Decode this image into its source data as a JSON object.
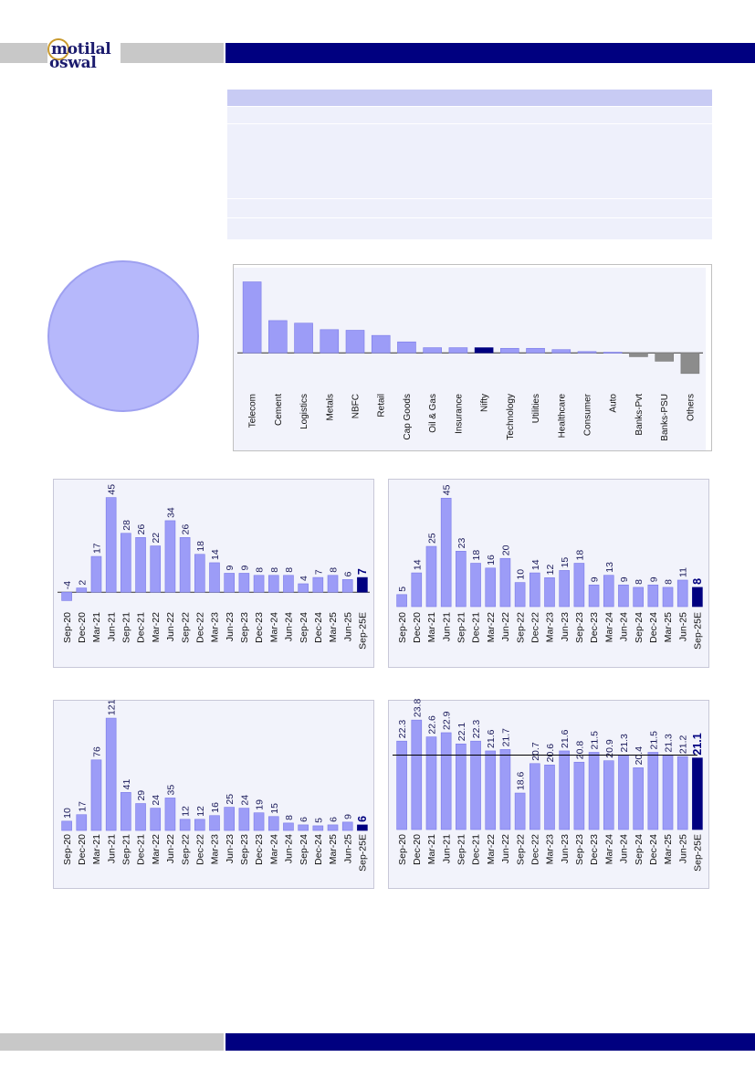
{
  "header": {
    "logo_line1": "motilal",
    "logo_line2": "oswal"
  },
  "chart_data": [
    {
      "id": "sector_growth",
      "type": "bar",
      "categories": [
        "Telecom",
        "Cement",
        "Logistics",
        "Metals",
        "NBFC",
        "Retail",
        "Cap Goods",
        "Oil & Gas",
        "Insurance",
        "Nifty",
        "Technology",
        "Utilities",
        "Healthcare",
        "Consumer",
        "Auto",
        "Banks-Pvt",
        "Banks-PSU",
        "Others"
      ],
      "values": [
        110,
        50,
        46,
        36,
        35,
        27,
        17,
        8,
        8,
        8,
        7,
        7,
        5,
        2,
        1,
        -6,
        -13,
        -32
      ],
      "highlight": [
        "Nifty"
      ],
      "negative_color": "#8c8c8c",
      "ylim": [
        -45,
        115
      ]
    },
    {
      "id": "chart_a",
      "type": "bar",
      "categories": [
        "Sep-20",
        "Dec-20",
        "Mar-21",
        "Jun-21",
        "Sep-21",
        "Dec-21",
        "Mar-22",
        "Jun-22",
        "Sep-22",
        "Dec-22",
        "Mar-23",
        "Jun-23",
        "Sep-23",
        "Dec-23",
        "Mar-24",
        "Jun-24",
        "Sep-24",
        "Dec-24",
        "Mar-25",
        "Jun-25",
        "Sep-25E"
      ],
      "values": [
        -4,
        2,
        17,
        45,
        28,
        26,
        22,
        34,
        26,
        18,
        14,
        9,
        9,
        8,
        8,
        8,
        4,
        7,
        8,
        6,
        7
      ],
      "highlight": [
        "Sep-25E"
      ],
      "ylim": [
        -6,
        47
      ]
    },
    {
      "id": "chart_b",
      "type": "bar",
      "categories": [
        "Sep-20",
        "Dec-20",
        "Mar-21",
        "Jun-21",
        "Sep-21",
        "Dec-21",
        "Mar-22",
        "Jun-22",
        "Sep-22",
        "Dec-22",
        "Mar-23",
        "Jun-23",
        "Sep-23",
        "Dec-23",
        "Mar-24",
        "Jun-24",
        "Sep-24",
        "Dec-24",
        "Mar-25",
        "Jun-25",
        "Sep-25E"
      ],
      "values": [
        5,
        14,
        25,
        45,
        23,
        18,
        16,
        20,
        10,
        14,
        12,
        15,
        18,
        9,
        13,
        9,
        8,
        9,
        8,
        11,
        8
      ],
      "highlight": [
        "Sep-25E"
      ],
      "ylim": [
        0,
        47
      ]
    },
    {
      "id": "chart_c",
      "type": "bar",
      "categories": [
        "Sep-20",
        "Dec-20",
        "Mar-21",
        "Jun-21",
        "Sep-21",
        "Dec-21",
        "Mar-22",
        "Jun-22",
        "Sep-22",
        "Dec-22",
        "Mar-23",
        "Jun-23",
        "Sep-23",
        "Dec-23",
        "Mar-24",
        "Jun-24",
        "Sep-24",
        "Dec-24",
        "Mar-25",
        "Jun-25",
        "Sep-25E"
      ],
      "values": [
        10,
        17,
        76,
        121,
        41,
        29,
        24,
        35,
        12,
        12,
        16,
        25,
        24,
        19,
        15,
        8,
        6,
        5,
        6,
        9,
        6
      ],
      "highlight": [
        "Sep-25E"
      ],
      "ylim": [
        0,
        125
      ]
    },
    {
      "id": "chart_d",
      "type": "bar",
      "categories": [
        "Sep-20",
        "Dec-20",
        "Mar-21",
        "Jun-21",
        "Sep-21",
        "Dec-21",
        "Mar-22",
        "Jun-22",
        "Sep-22",
        "Dec-22",
        "Mar-23",
        "Jun-23",
        "Sep-23",
        "Dec-23",
        "Mar-24",
        "Jun-24",
        "Sep-24",
        "Dec-24",
        "Mar-25",
        "Jun-25",
        "Sep-25E"
      ],
      "values": [
        22.3,
        23.8,
        22.6,
        22.9,
        22.1,
        22.3,
        21.6,
        21.7,
        18.6,
        20.7,
        20.6,
        21.6,
        20.8,
        21.5,
        20.9,
        21.3,
        20.4,
        21.5,
        21.3,
        21.2,
        21.1
      ],
      "highlight": [
        "Sep-25E"
      ],
      "reference_line": 21.3,
      "ylim": [
        16,
        24.2
      ],
      "decimals": 1
    }
  ],
  "colors": {
    "bar": "#9c9cf7",
    "bar_stroke": "#7a7ae8",
    "highlight": "#000080",
    "chart_bg": "#f2f3fb",
    "value_label": "#1a1a5a"
  }
}
